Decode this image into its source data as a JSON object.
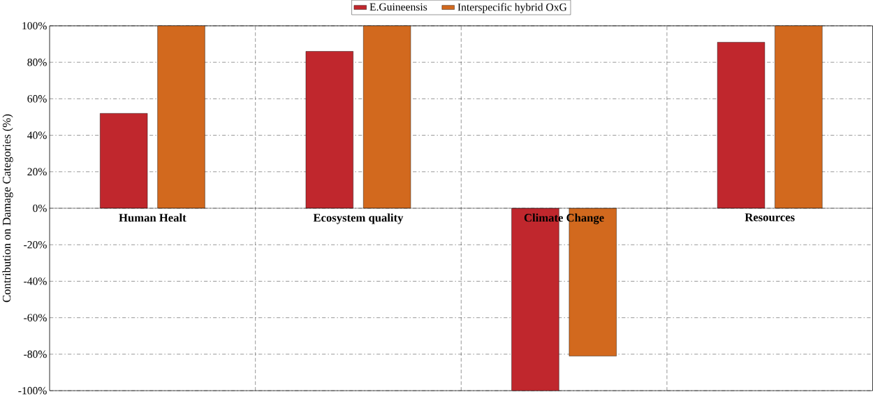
{
  "chart_data": {
    "type": "bar",
    "ylabel": "Contribution on Damage Categories (%)",
    "categories": [
      "Human Healt",
      "Ecosystem quality",
      "Climate Change",
      "Resources"
    ],
    "series": [
      {
        "name": "E.Guineensis",
        "color": "#c0272d",
        "values": [
          52,
          86,
          -100,
          91
        ]
      },
      {
        "name": "Interspecific hybrid OxG",
        "color": "#d2691e",
        "values": [
          100,
          100,
          -81,
          100
        ]
      }
    ],
    "ylim": [
      -100,
      100
    ],
    "yticks": [
      {
        "value": -100,
        "label": "-100%"
      },
      {
        "value": -80,
        "label": "-80%"
      },
      {
        "value": -60,
        "label": "-60%"
      },
      {
        "value": -40,
        "label": "-40%"
      },
      {
        "value": -20,
        "label": "-20%"
      },
      {
        "value": 0,
        "label": "0%"
      },
      {
        "value": 20,
        "label": "20%"
      },
      {
        "value": 40,
        "label": "40%"
      },
      {
        "value": 60,
        "label": "60%"
      },
      {
        "value": 80,
        "label": "80%"
      },
      {
        "value": 100,
        "label": "100%"
      }
    ],
    "grid": true,
    "legend": "top"
  }
}
